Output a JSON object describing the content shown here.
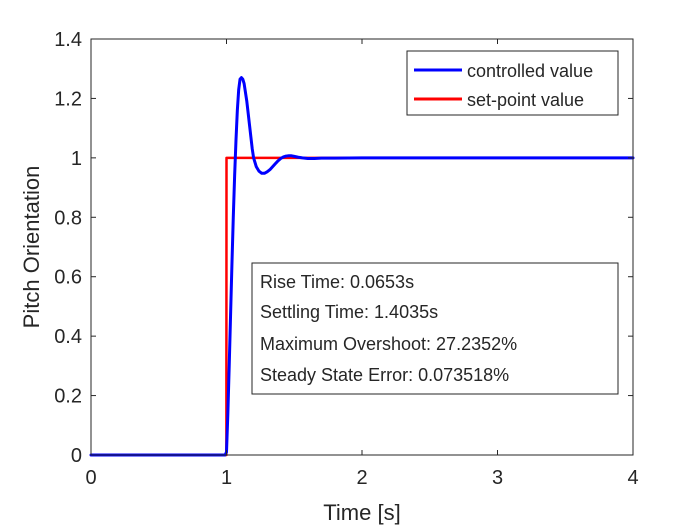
{
  "chart_data": {
    "type": "line",
    "xlabel": "Time [s]",
    "ylabel": "Pitch Orientation",
    "xlim": [
      0,
      4
    ],
    "ylim": [
      0,
      1.4
    ],
    "xticks": [
      0,
      1,
      2,
      3,
      4
    ],
    "yticks": [
      0,
      0.2,
      0.4,
      0.6,
      0.8,
      1,
      1.2,
      1.4
    ],
    "grid": false,
    "legend_position": "top-right",
    "series": [
      {
        "name": "controlled value",
        "color": "#0000ff",
        "x": [
          0,
          0.99,
          1.0,
          1.01,
          1.02,
          1.03,
          1.04,
          1.05,
          1.06,
          1.07,
          1.08,
          1.09,
          1.1,
          1.11,
          1.12,
          1.13,
          1.14,
          1.15,
          1.16,
          1.17,
          1.18,
          1.19,
          1.2,
          1.22,
          1.24,
          1.26,
          1.28,
          1.3,
          1.32,
          1.34,
          1.36,
          1.38,
          1.4,
          1.42,
          1.44,
          1.46,
          1.48,
          1.5,
          1.53,
          1.56,
          1.6,
          1.65,
          1.7,
          1.8,
          2.0,
          2.5,
          3.0,
          3.5,
          4.0
        ],
        "y": [
          0,
          0,
          0.01,
          0.14,
          0.3,
          0.47,
          0.64,
          0.8,
          0.94,
          1.06,
          1.16,
          1.23,
          1.265,
          1.27,
          1.265,
          1.25,
          1.22,
          1.19,
          1.15,
          1.11,
          1.07,
          1.03,
          1.0,
          0.97,
          0.955,
          0.948,
          0.948,
          0.953,
          0.96,
          0.97,
          0.98,
          0.99,
          0.998,
          1.003,
          1.006,
          1.007,
          1.007,
          1.005,
          1.002,
          1.0,
          0.998,
          0.998,
          0.999,
          0.999,
          1.0,
          1.0,
          1.0,
          1.0,
          1.0
        ]
      },
      {
        "name": "set-point value",
        "color": "#ff0000",
        "x": [
          0,
          0.999,
          1.0,
          4.0
        ],
        "y": [
          0,
          0,
          1,
          1
        ]
      }
    ],
    "annotations": [
      "Rise Time: 0.0653s",
      "Settling Time: 1.4035s",
      "Maximum Overshoot: 27.2352%",
      "Steady State Error: 0.073518%"
    ]
  }
}
